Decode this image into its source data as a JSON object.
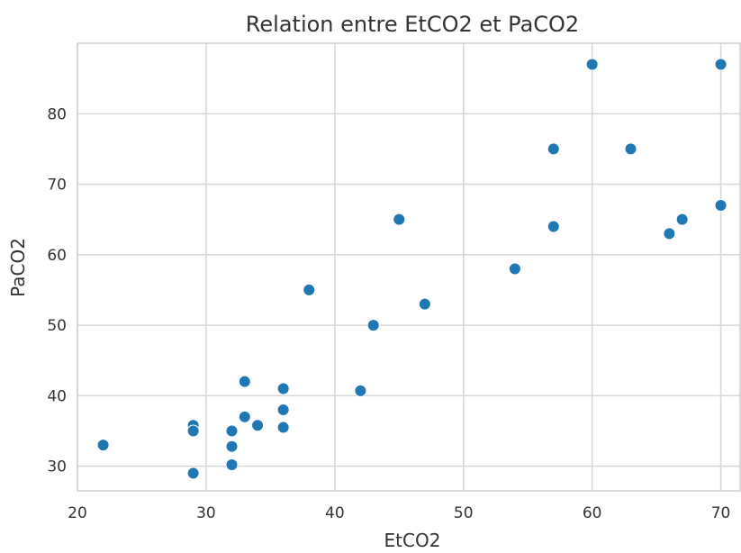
{
  "chart_data": {
    "type": "scatter",
    "title": "Relation entre EtCO2 et PaCO2",
    "xlabel": "EtCO2",
    "ylabel": "PaCO2",
    "xlim": [
      20,
      71.5
    ],
    "ylim": [
      26.5,
      90
    ],
    "x_ticks": [
      20,
      30,
      40,
      50,
      60,
      70
    ],
    "y_ticks": [
      30,
      40,
      50,
      60,
      70,
      80
    ],
    "grid": true,
    "point_color": "#1f77b4",
    "points": [
      {
        "x": 22,
        "y": 33
      },
      {
        "x": 29,
        "y": 35.8
      },
      {
        "x": 29,
        "y": 35
      },
      {
        "x": 29,
        "y": 29
      },
      {
        "x": 32,
        "y": 35
      },
      {
        "x": 32,
        "y": 32.8
      },
      {
        "x": 32,
        "y": 30.2
      },
      {
        "x": 33,
        "y": 42
      },
      {
        "x": 33,
        "y": 37
      },
      {
        "x": 34,
        "y": 35.8
      },
      {
        "x": 36,
        "y": 41
      },
      {
        "x": 36,
        "y": 38
      },
      {
        "x": 36,
        "y": 35.5
      },
      {
        "x": 38,
        "y": 55
      },
      {
        "x": 42,
        "y": 40.7
      },
      {
        "x": 43,
        "y": 50
      },
      {
        "x": 45,
        "y": 65
      },
      {
        "x": 47,
        "y": 53
      },
      {
        "x": 54,
        "y": 58
      },
      {
        "x": 57,
        "y": 75
      },
      {
        "x": 57,
        "y": 64
      },
      {
        "x": 60,
        "y": 87
      },
      {
        "x": 63,
        "y": 75
      },
      {
        "x": 66,
        "y": 63
      },
      {
        "x": 67,
        "y": 65
      },
      {
        "x": 70,
        "y": 87
      },
      {
        "x": 70,
        "y": 67
      }
    ]
  }
}
